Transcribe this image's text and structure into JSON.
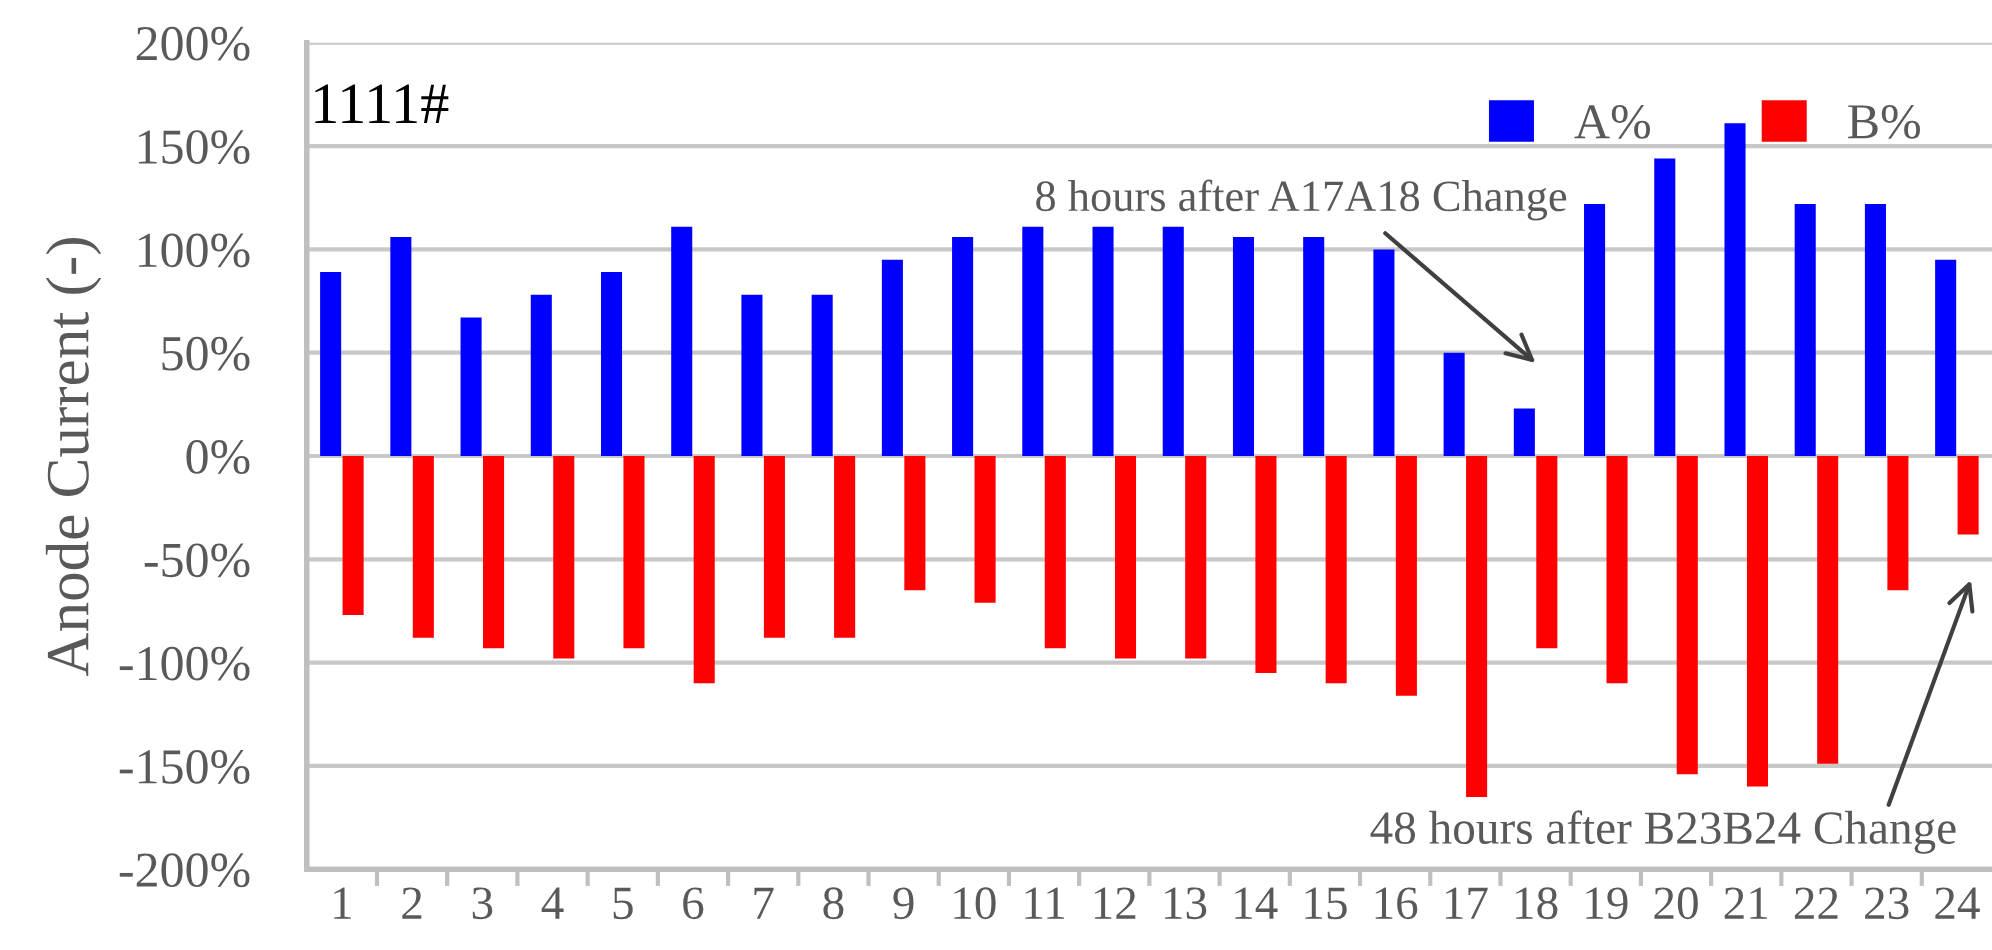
{
  "chart_data": {
    "type": "bar",
    "ylabel": "Anode Current (-)",
    "categories": [
      "1",
      "2",
      "3",
      "4",
      "5",
      "6",
      "7",
      "8",
      "9",
      "10",
      "11",
      "12",
      "13",
      "14",
      "15",
      "16",
      "17",
      "18",
      "19",
      "20",
      "21",
      "22",
      "23",
      "24"
    ],
    "series": [
      {
        "name": "A%",
        "color": "#0000ff",
        "values": [
          89,
          106,
          67,
          78,
          89,
          111,
          78,
          78,
          95,
          106,
          111,
          111,
          111,
          106,
          106,
          100,
          50,
          23,
          122,
          144,
          161,
          122,
          122,
          95
        ]
      },
      {
        "name": "B%",
        "color": "#ff0000",
        "values": [
          -77,
          -88,
          -93,
          -98,
          -93,
          -110,
          -88,
          -88,
          -65,
          -71,
          -93,
          -98,
          -98,
          -105,
          -110,
          -116,
          -165,
          -93,
          -110,
          -154,
          -160,
          -149,
          -65,
          -38
        ]
      }
    ],
    "ylim": [
      -200,
      200
    ],
    "yticks": [
      {
        "value": -200,
        "label": "-200%"
      },
      {
        "value": -150,
        "label": "-150%"
      },
      {
        "value": -100,
        "label": "-100%"
      },
      {
        "value": -50,
        "label": "-50%"
      },
      {
        "value": 0,
        "label": "0%"
      },
      {
        "value": 50,
        "label": "50%"
      },
      {
        "value": 100,
        "label": "100%"
      },
      {
        "value": 150,
        "label": "150%"
      },
      {
        "value": 200,
        "label": "200%"
      }
    ],
    "grid": "y",
    "legend": "top right",
    "annotations": [
      "1111#",
      "8 hours after A17A18 Change",
      "48 hours after B23B24 Change"
    ]
  }
}
